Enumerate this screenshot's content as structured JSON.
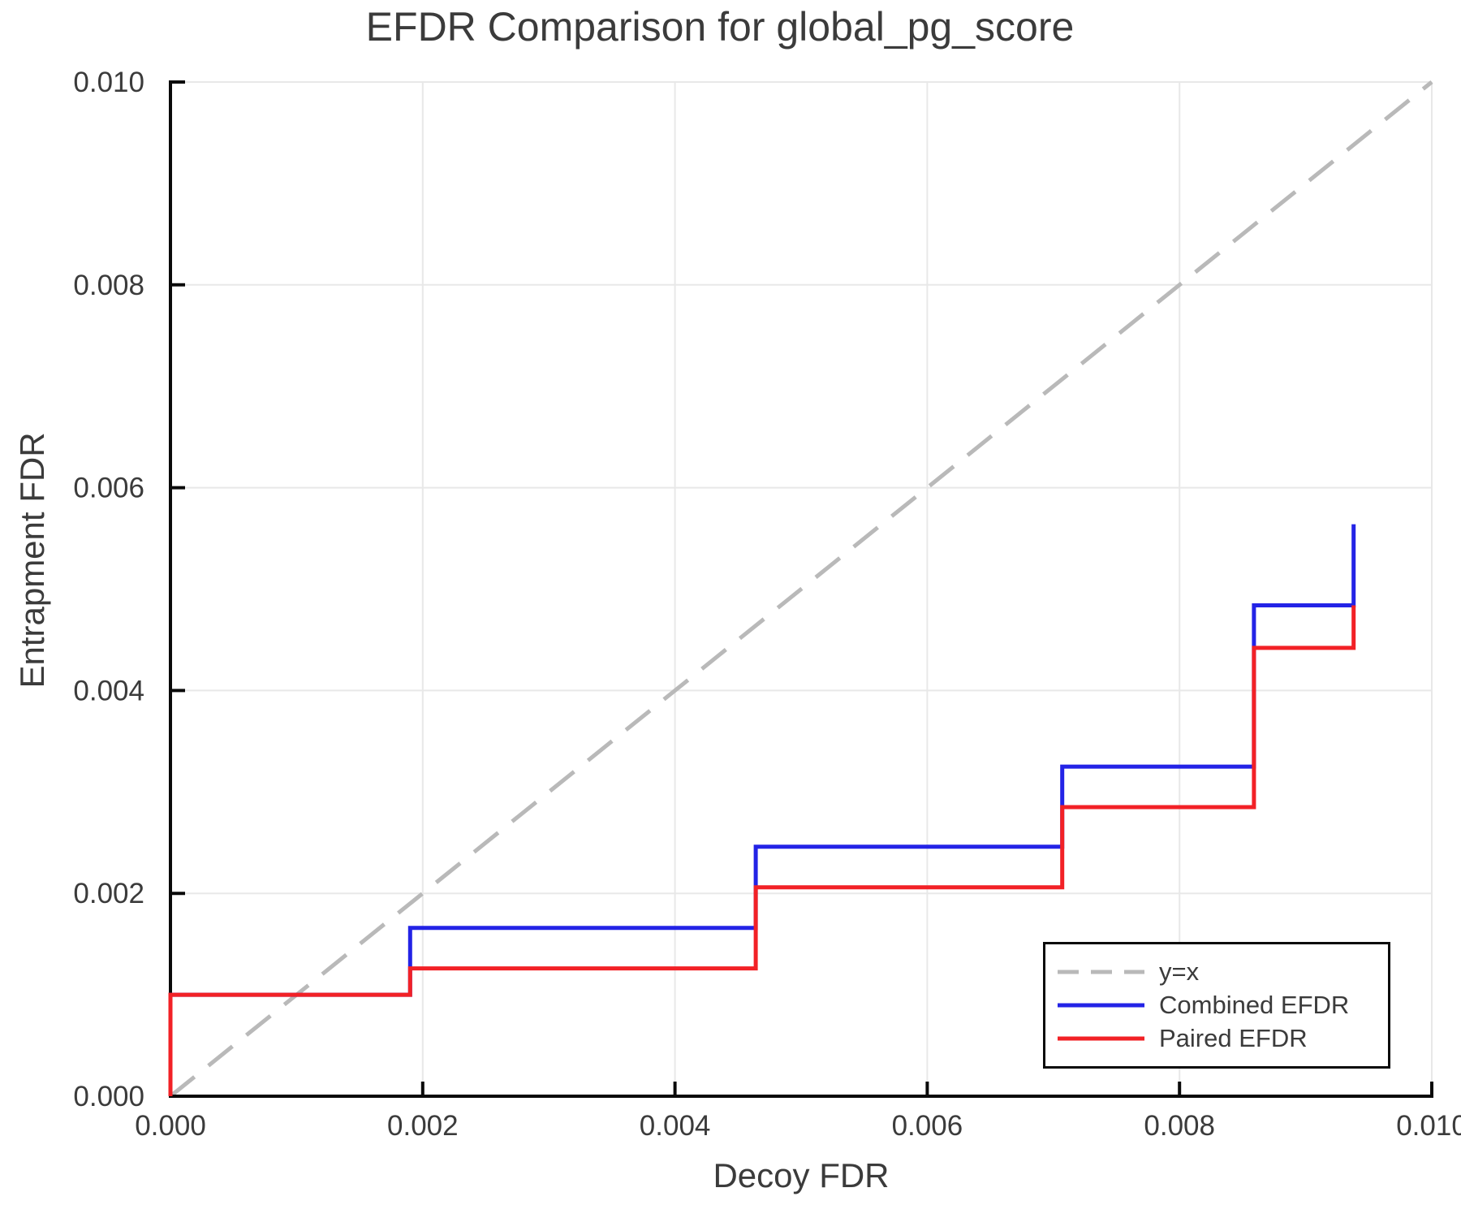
{
  "chart_data": {
    "type": "line",
    "subtype": "step",
    "title": "EFDR Comparison for global_pg_score",
    "xlabel": "Decoy FDR",
    "ylabel": "Entrapment FDR",
    "xlim": [
      0.0,
      0.01
    ],
    "ylim": [
      0.0,
      0.01
    ],
    "grid": true,
    "ticks": {
      "x": [
        {
          "value": 0.0,
          "label": "0.000"
        },
        {
          "value": 0.002,
          "label": "0.002"
        },
        {
          "value": 0.004,
          "label": "0.004"
        },
        {
          "value": 0.006,
          "label": "0.006"
        },
        {
          "value": 0.008,
          "label": "0.008"
        },
        {
          "value": 0.01,
          "label": "0.010"
        }
      ],
      "y": [
        {
          "value": 0.0,
          "label": "0.000"
        },
        {
          "value": 0.002,
          "label": "0.002"
        },
        {
          "value": 0.004,
          "label": "0.004"
        },
        {
          "value": 0.006,
          "label": "0.006"
        },
        {
          "value": 0.008,
          "label": "0.008"
        },
        {
          "value": 0.01,
          "label": "0.010"
        }
      ]
    },
    "reference_line": {
      "label": "y=x",
      "from": [
        0.0,
        0.0
      ],
      "to": [
        0.01,
        0.01
      ],
      "color": "#b9b9b9",
      "dashed": true
    },
    "series": [
      {
        "name": "Combined EFDR",
        "color": "#2323e6",
        "step_points": [
          [
            0.0,
            0.0
          ],
          [
            0.0,
            0.001
          ],
          [
            0.0019,
            0.001
          ],
          [
            0.0019,
            0.00166
          ],
          [
            0.00464,
            0.00166
          ],
          [
            0.00464,
            0.00246
          ],
          [
            0.00707,
            0.00246
          ],
          [
            0.00707,
            0.00325
          ],
          [
            0.00859,
            0.00325
          ],
          [
            0.00859,
            0.00484
          ],
          [
            0.00938,
            0.00484
          ],
          [
            0.00938,
            0.00564
          ]
        ]
      },
      {
        "name": "Paired EFDR",
        "color": "#f22126",
        "step_points": [
          [
            0.0,
            0.0
          ],
          [
            0.0,
            0.001
          ],
          [
            0.0019,
            0.001
          ],
          [
            0.0019,
            0.00126
          ],
          [
            0.00464,
            0.00126
          ],
          [
            0.00464,
            0.00206
          ],
          [
            0.00707,
            0.00206
          ],
          [
            0.00707,
            0.00285
          ],
          [
            0.00859,
            0.00285
          ],
          [
            0.00859,
            0.00442
          ],
          [
            0.00938,
            0.00442
          ],
          [
            0.00938,
            0.00484
          ]
        ]
      }
    ],
    "legend": {
      "position": "bottom-right",
      "entries": [
        {
          "label": "y=x",
          "color": "#b9b9b9",
          "dashed": true
        },
        {
          "label": "Combined EFDR",
          "color": "#2323e6",
          "dashed": false
        },
        {
          "label": "Paired EFDR",
          "color": "#f22126",
          "dashed": false
        }
      ]
    },
    "colors": {
      "axis": "#0a0a0a",
      "grid": "#e8e8e8",
      "text": "#3b3b3b",
      "background": "#ffffff"
    }
  }
}
